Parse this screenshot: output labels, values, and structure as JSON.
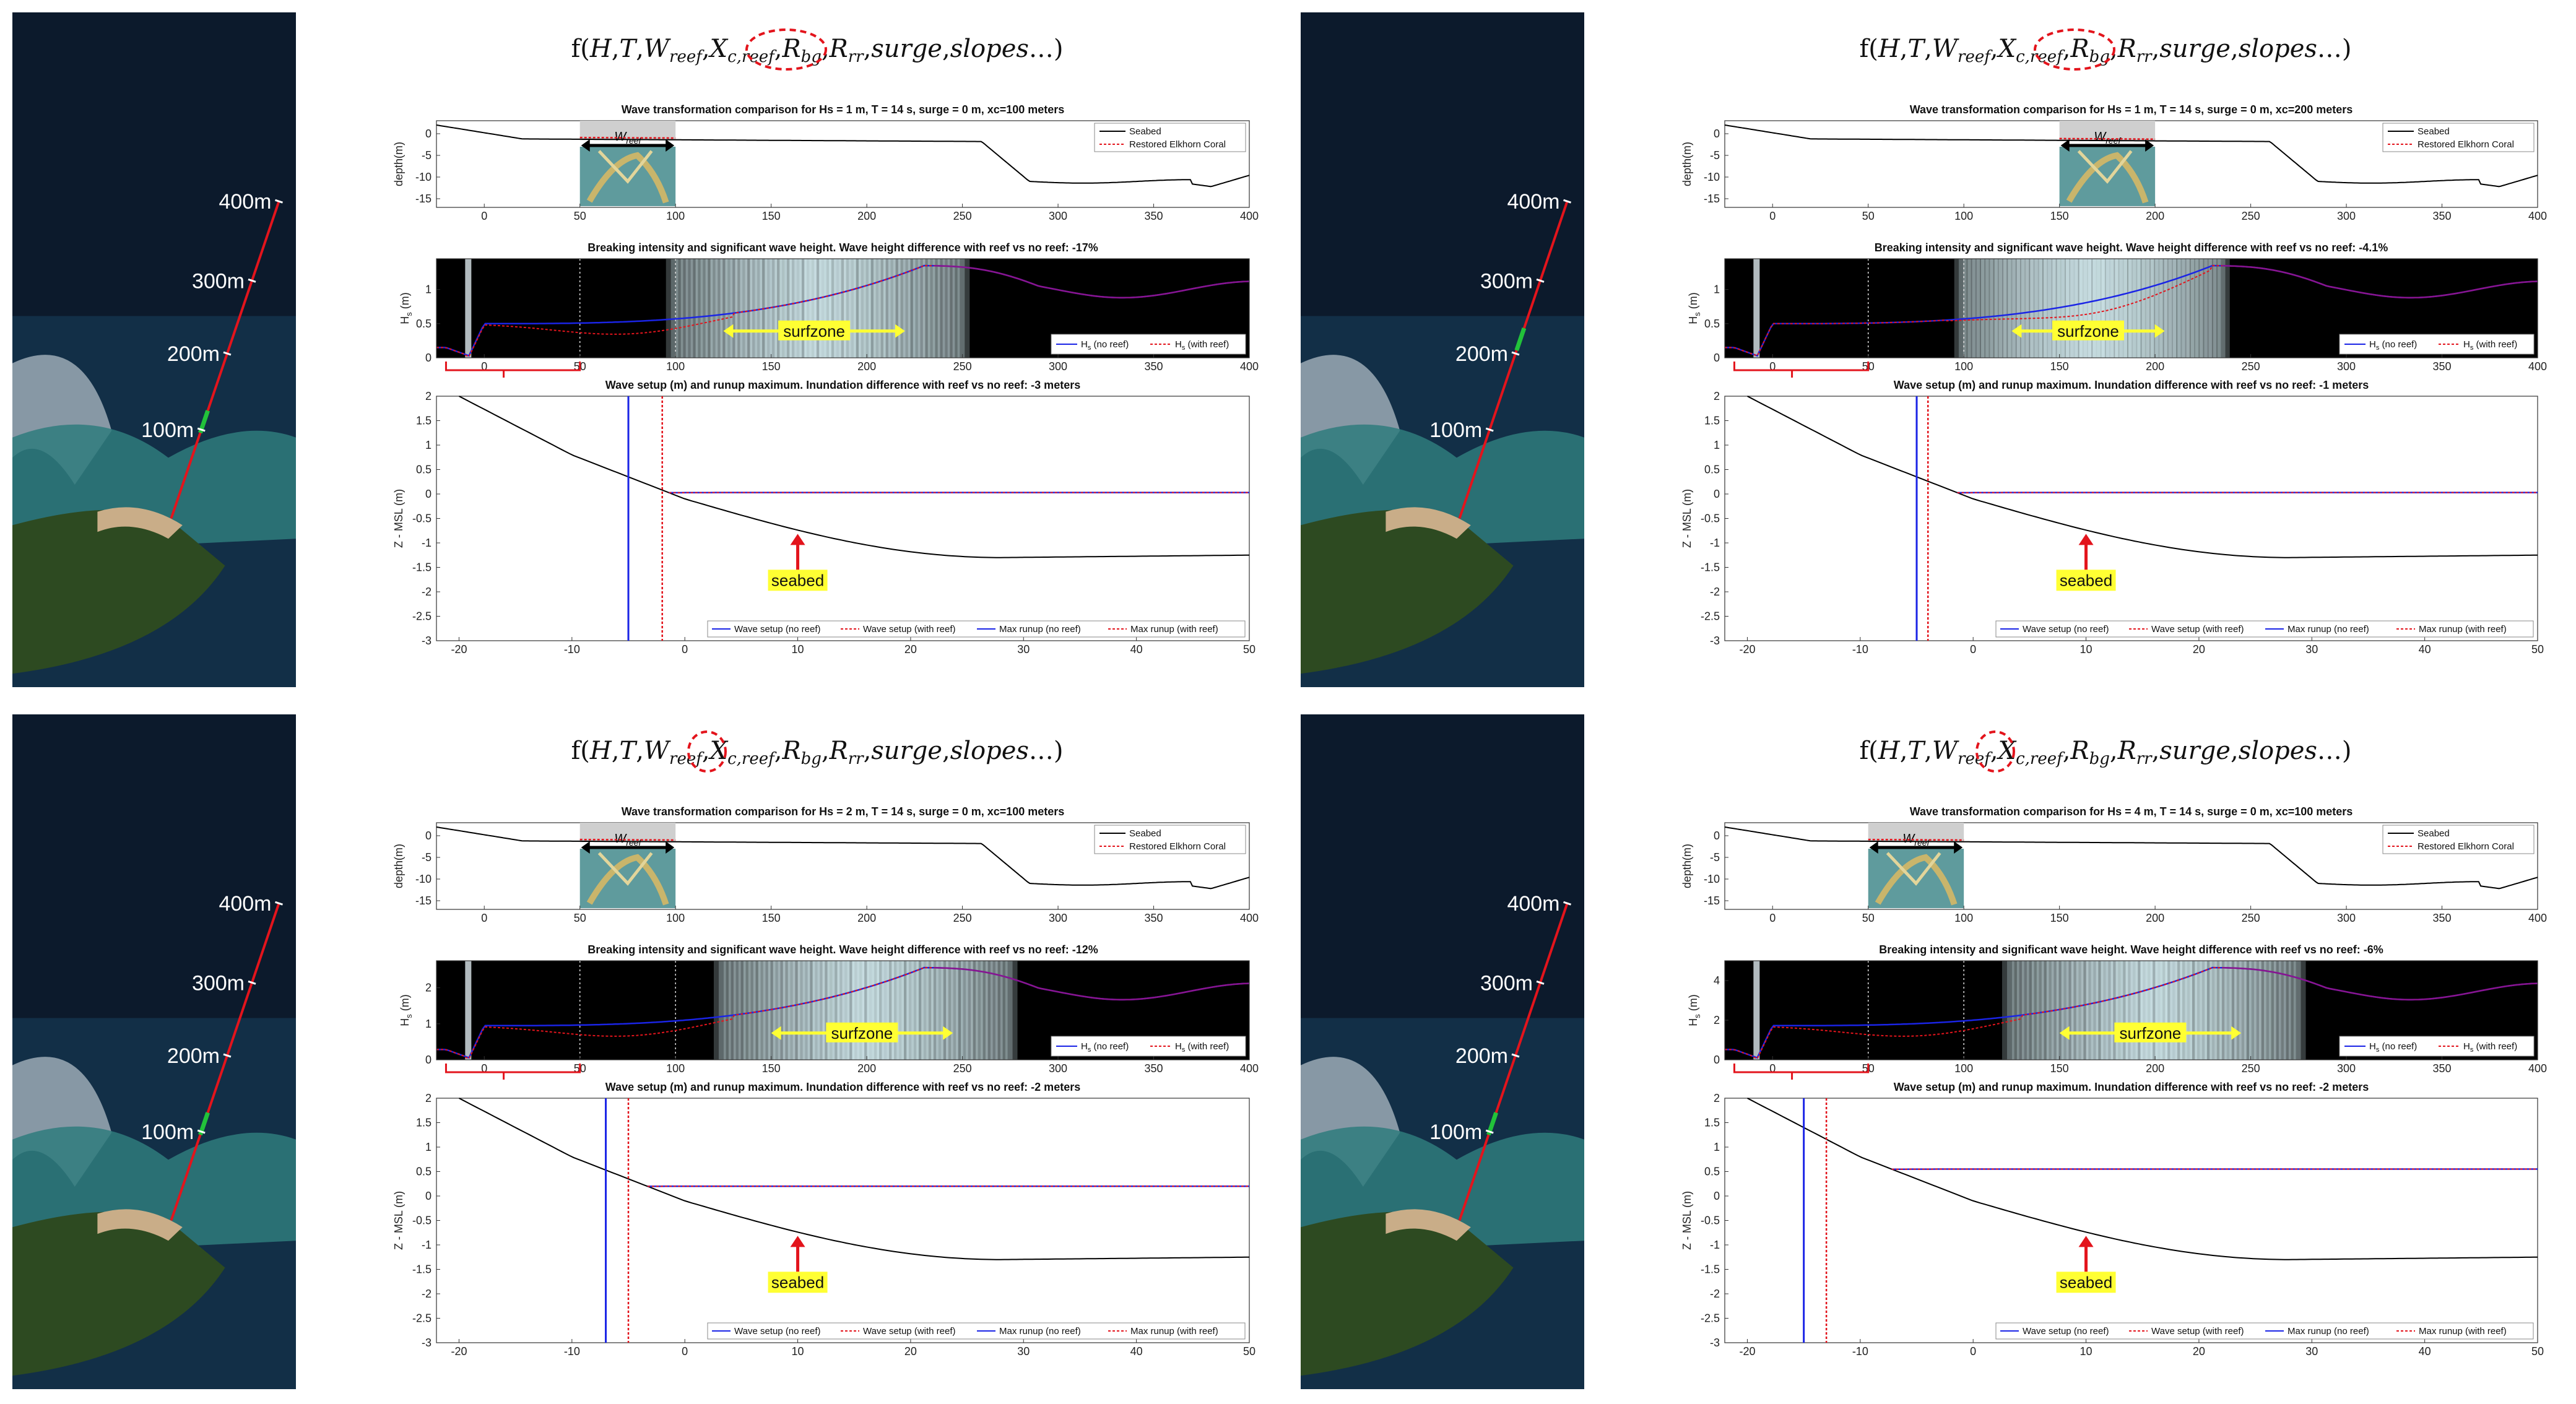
{
  "formula_parts": [
    "f(",
    "H",
    ",",
    "T",
    ",",
    "W",
    "reef",
    ",",
    "X",
    "c,reef",
    ",",
    "R",
    "bg",
    ",",
    "R",
    "rr",
    ",",
    "surge",
    ",",
    "slopes",
    "…)"
  ],
  "common": {
    "depth_ylabel": "depth(m)",
    "hs_ylabel": "H",
    "hs_ylabel_sub": "s",
    "hs_ylabel_unit": " (m)",
    "z_ylabel": "Z - MSL (m)",
    "w_reef": "W",
    "w_reef_sub": "reef",
    "surfzone": "surfzone",
    "seabed": "seabed",
    "legend_depth": [
      "Seabed",
      "Restored Elkhorn Coral"
    ],
    "legend_hs": [
      "H",
      "s",
      " (no reef)",
      "H",
      "s",
      " (with reef)"
    ],
    "legend_setup": [
      "Wave setup (no reef)",
      "Wave setup (with reef)",
      "Max runup (no reef)",
      "Max runup (with reef)"
    ],
    "distances": [
      "400m",
      "300m",
      "200m",
      "100m"
    ],
    "colors": {
      "seabed": "#000000",
      "no_reef": "#1a24e6",
      "with_reef": "#e3141c",
      "highlight": "#ffff33",
      "purple": "#8a148f",
      "reef_box": "#cfcfcf"
    }
  },
  "chart_data": [
    {
      "type": "line",
      "panel": "top-left",
      "highlight": "X",
      "depth_plot": {
        "title": "Wave transformation comparison for Hs = 1 m, T = 14 s, surge = 0 m, xc=100 meters",
        "xlim": [
          -25,
          400
        ],
        "ylim": [
          -17,
          3
        ],
        "xticks": [
          "0",
          "50",
          "100",
          "150",
          "200",
          "250",
          "300",
          "350",
          "400"
        ],
        "yticks": [
          "0",
          "-5",
          "-10",
          "-15"
        ],
        "reef_x": [
          50,
          100
        ]
      },
      "hs_plot": {
        "title": "Breaking intensity and significant wave height. Wave height difference with reef vs no reef: -17%",
        "xlim": [
          -25,
          400
        ],
        "ylim": [
          0,
          1.45
        ],
        "yticks": [
          "0",
          "0.5",
          "1"
        ],
        "xticks": [
          "0",
          "50",
          "100",
          "150",
          "200",
          "250",
          "300",
          "350",
          "400"
        ],
        "surfzone": [
          125,
          220
        ]
      },
      "setup_plot": {
        "title": "Wave setup (m) and runup maximum. Inundation difference with reef vs no reef: -3 meters",
        "xlim": [
          -22,
          50
        ],
        "ylim": [
          -3,
          2
        ],
        "yticks": [
          "2",
          "1.5",
          "1",
          "0.5",
          "0",
          "-0.5",
          "-1",
          "-1.5",
          "-2",
          "-2.5",
          "-3"
        ],
        "xticks": [
          "-20",
          "-10",
          "0",
          "10",
          "20",
          "30",
          "40",
          "50"
        ],
        "setup_level": 0.03,
        "runup_no_reef": -5,
        "runup_with_reef": -2
      }
    },
    {
      "type": "line",
      "panel": "top-right",
      "highlight": "X",
      "depth_plot": {
        "title": "Wave transformation comparison for Hs = 1 m, T = 14 s, surge = 0 m, xc=200 meters",
        "xlim": [
          -25,
          400
        ],
        "ylim": [
          -17,
          3
        ],
        "xticks": [
          "0",
          "50",
          "100",
          "150",
          "200",
          "250",
          "300",
          "350",
          "400"
        ],
        "yticks": [
          "0",
          "-5",
          "-10",
          "-15"
        ],
        "reef_x": [
          150,
          200
        ]
      },
      "hs_plot": {
        "title": "Breaking intensity and significant wave height. Wave height difference with reef vs no reef: -4.1%",
        "xlim": [
          -25,
          400
        ],
        "ylim": [
          0,
          1.45
        ],
        "yticks": [
          "0",
          "0.5",
          "1"
        ],
        "xticks": [
          "0",
          "50",
          "100",
          "150",
          "200",
          "250",
          "300",
          "350",
          "400"
        ],
        "surfzone": [
          125,
          205
        ]
      },
      "setup_plot": {
        "title": "Wave setup (m) and runup maximum. Inundation difference with reef vs no reef: -1 meters",
        "xlim": [
          -22,
          50
        ],
        "ylim": [
          -3,
          2
        ],
        "yticks": [
          "2",
          "1.5",
          "1",
          "0.5",
          "0",
          "-0.5",
          "-1",
          "-1.5",
          "-2",
          "-2.5",
          "-3"
        ],
        "xticks": [
          "-20",
          "-10",
          "0",
          "10",
          "20",
          "30",
          "40",
          "50"
        ],
        "setup_level": 0.03,
        "runup_no_reef": -5,
        "runup_with_reef": -4
      }
    },
    {
      "type": "line",
      "panel": "bottom-left",
      "highlight": "H",
      "depth_plot": {
        "title": "Wave transformation comparison for Hs = 2 m, T = 14 s, surge = 0 m, xc=100 meters",
        "xlim": [
          -25,
          400
        ],
        "ylim": [
          -17,
          3
        ],
        "xticks": [
          "0",
          "50",
          "100",
          "150",
          "200",
          "250",
          "300",
          "350",
          "400"
        ],
        "yticks": [
          "0",
          "-5",
          "-10",
          "-15"
        ],
        "reef_x": [
          50,
          100
        ]
      },
      "hs_plot": {
        "title": "Breaking intensity and significant wave height. Wave height difference with reef vs no reef: -12%",
        "xlim": [
          -25,
          400
        ],
        "ylim": [
          0,
          2.75
        ],
        "yticks": [
          "0",
          "1",
          "2"
        ],
        "xticks": [
          "0",
          "50",
          "100",
          "150",
          "200",
          "250",
          "300",
          "350",
          "400"
        ],
        "surfzone": [
          150,
          245
        ]
      },
      "setup_plot": {
        "title": "Wave setup (m) and runup maximum. Inundation difference with reef vs no reef: -2 meters",
        "xlim": [
          -22,
          50
        ],
        "ylim": [
          -3,
          2
        ],
        "yticks": [
          "2",
          "1.5",
          "1",
          "0.5",
          "0",
          "-0.5",
          "-1",
          "-1.5",
          "-2",
          "-2.5",
          "-3"
        ],
        "xticks": [
          "-20",
          "-10",
          "0",
          "10",
          "20",
          "30",
          "40",
          "50"
        ],
        "setup_level": 0.2,
        "runup_no_reef": -7,
        "runup_with_reef": -5
      }
    },
    {
      "type": "line",
      "panel": "bottom-right",
      "highlight": "H",
      "depth_plot": {
        "title": "Wave transformation comparison for Hs = 4 m, T = 14 s, surge = 0 m, xc=100 meters",
        "xlim": [
          -25,
          400
        ],
        "ylim": [
          -17,
          3
        ],
        "xticks": [
          "0",
          "50",
          "100",
          "150",
          "200",
          "250",
          "300",
          "350",
          "400"
        ],
        "yticks": [
          "0",
          "-5",
          "-10",
          "-15"
        ],
        "reef_x": [
          50,
          100
        ]
      },
      "hs_plot": {
        "title": "Breaking intensity and significant wave height. Wave height difference with reef vs no reef: -6%",
        "xlim": [
          -25,
          400
        ],
        "ylim": [
          0,
          5
        ],
        "yticks": [
          "0",
          "2",
          "4"
        ],
        "xticks": [
          "0",
          "50",
          "100",
          "150",
          "200",
          "250",
          "300",
          "350",
          "400"
        ],
        "surfzone": [
          150,
          245
        ]
      },
      "setup_plot": {
        "title": "Wave setup (m) and runup maximum. Inundation difference with reef vs no reef: -2 meters",
        "xlim": [
          -22,
          50
        ],
        "ylim": [
          -3,
          2
        ],
        "yticks": [
          "2",
          "1.5",
          "1",
          "0.5",
          "0",
          "-0.5",
          "-1",
          "-1.5",
          "-2",
          "-2.5",
          "-3"
        ],
        "xticks": [
          "-20",
          "-10",
          "0",
          "10",
          "20",
          "30",
          "40",
          "50"
        ],
        "setup_level": 0.55,
        "runup_no_reef": -15,
        "runup_with_reef": -13
      }
    }
  ]
}
